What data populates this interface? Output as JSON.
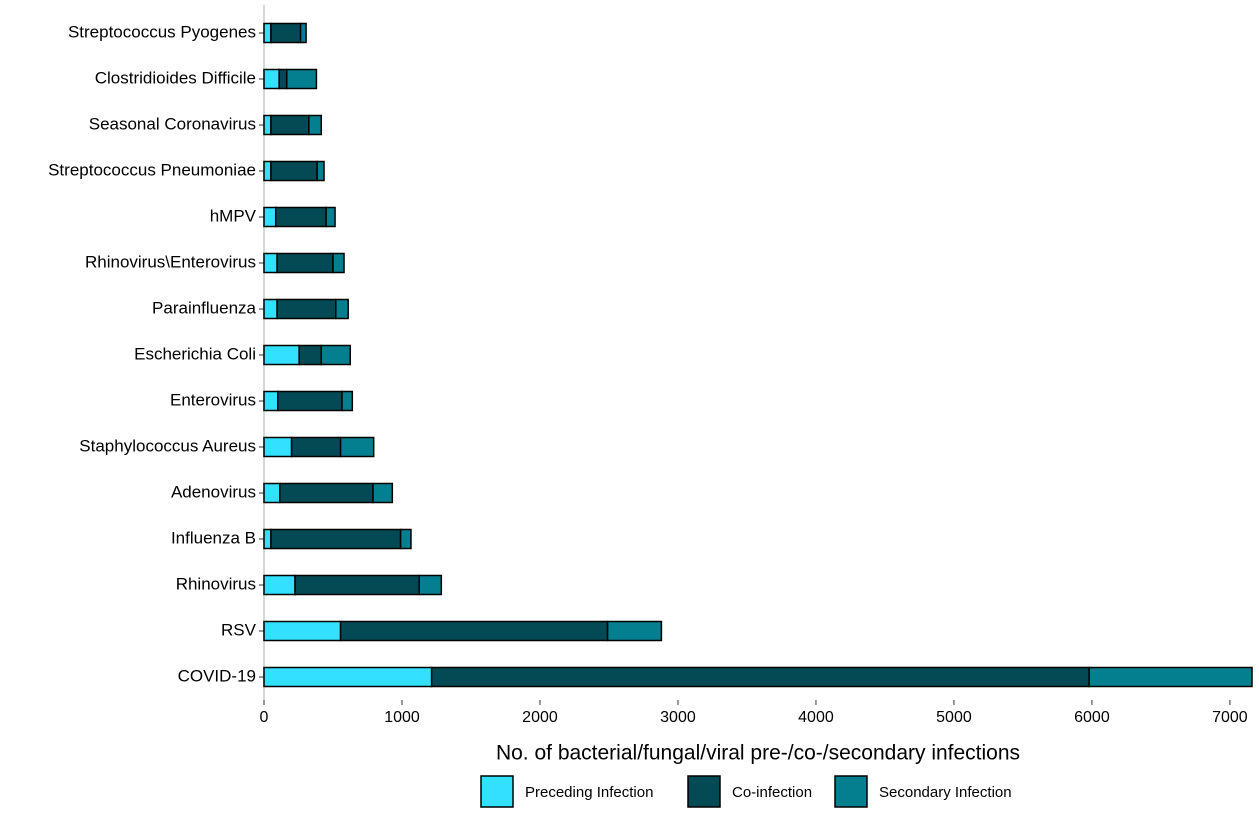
{
  "chart_data": {
    "type": "bar",
    "orientation": "horizontal",
    "stacked": true,
    "x_label": "No. of bacterial/fungal/viral pre-/co-/secondary infections",
    "categories": [
      "Streptococcus Pyogenes",
      "Clostridioides Difficile",
      "Seasonal Coronavirus",
      "Streptococcus Pneumoniae",
      "hMPV",
      "Rhinovirus\\Enterovirus",
      "Parainfluenza",
      "Escherichia Coli",
      "Enterovirus",
      "Staphylococcus Aureus",
      "Adenovirus",
      "Influenza B",
      "Rhinovirus",
      "RSV",
      "COVID-19"
    ],
    "series": [
      {
        "name": "Preceding Infection",
        "color": "#33e0ff",
        "values": [
          50,
          110,
          50,
          50,
          85,
          95,
          95,
          255,
          100,
          200,
          115,
          50,
          225,
          555,
          1215
        ]
      },
      {
        "name": "Co-infection",
        "color": "#044a55",
        "values": [
          215,
          55,
          275,
          335,
          365,
          405,
          425,
          160,
          465,
          355,
          675,
          940,
          900,
          1935,
          4765
        ]
      },
      {
        "name": "Secondary Infection",
        "color": "#047f8f",
        "values": [
          40,
          215,
          90,
          50,
          65,
          80,
          90,
          210,
          75,
          240,
          140,
          75,
          160,
          390,
          1180
        ]
      }
    ],
    "xlim": [
      0,
      7160
    ],
    "xticks": [
      0,
      1000,
      2000,
      3000,
      4000,
      5000,
      6000,
      7000
    ],
    "grid": false,
    "legend_position": "bottom"
  }
}
